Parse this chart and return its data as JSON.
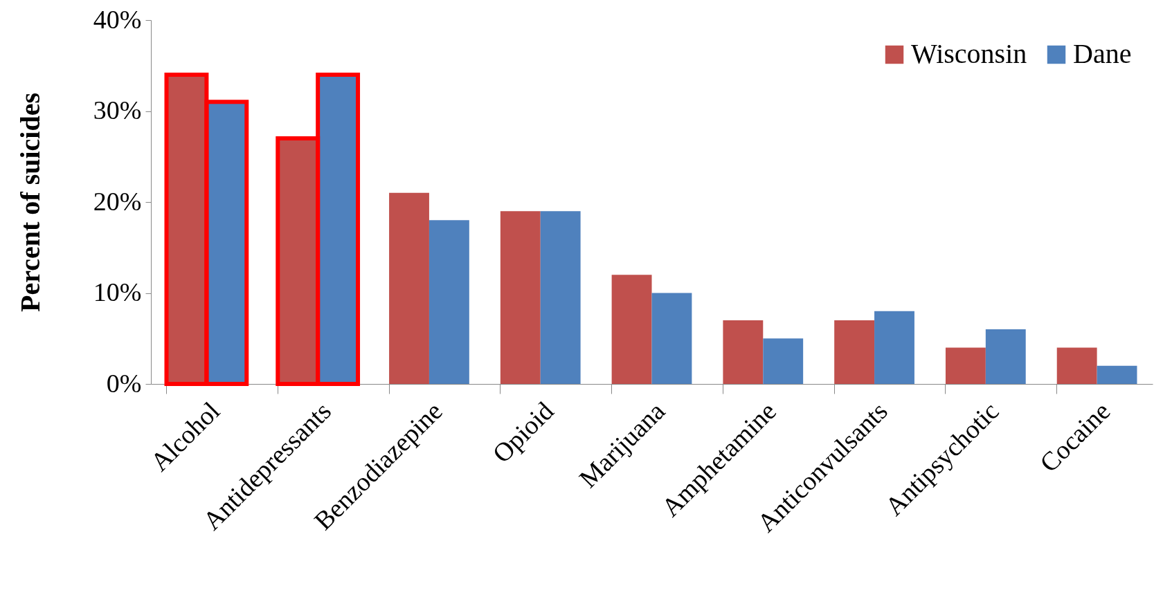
{
  "chart_data": {
    "type": "bar",
    "ylabel": "Percent of suicides",
    "categories": [
      "Alcohol",
      "Antidepressants",
      "Benzodiazepine",
      "Opioid",
      "Marijuana",
      "Amphetamine",
      "Anticonvulsants",
      "Antipsychotic",
      "Cocaine"
    ],
    "series": [
      {
        "name": "Wisconsin",
        "color": "#c0504d",
        "values": [
          34,
          27,
          21,
          19,
          12,
          7,
          7,
          4,
          4
        ]
      },
      {
        "name": "Dane",
        "color": "#4f81bd",
        "values": [
          31,
          34,
          18,
          19,
          10,
          5,
          8,
          6,
          2
        ]
      }
    ],
    "ylim": [
      0,
      40
    ],
    "yticks": [
      {
        "value": 0,
        "label": "0%"
      },
      {
        "value": 10,
        "label": "10%"
      },
      {
        "value": 20,
        "label": "20%"
      },
      {
        "value": 30,
        "label": "30%"
      },
      {
        "value": 40,
        "label": "40%"
      }
    ],
    "grid": false,
    "legend": "top right"
  }
}
